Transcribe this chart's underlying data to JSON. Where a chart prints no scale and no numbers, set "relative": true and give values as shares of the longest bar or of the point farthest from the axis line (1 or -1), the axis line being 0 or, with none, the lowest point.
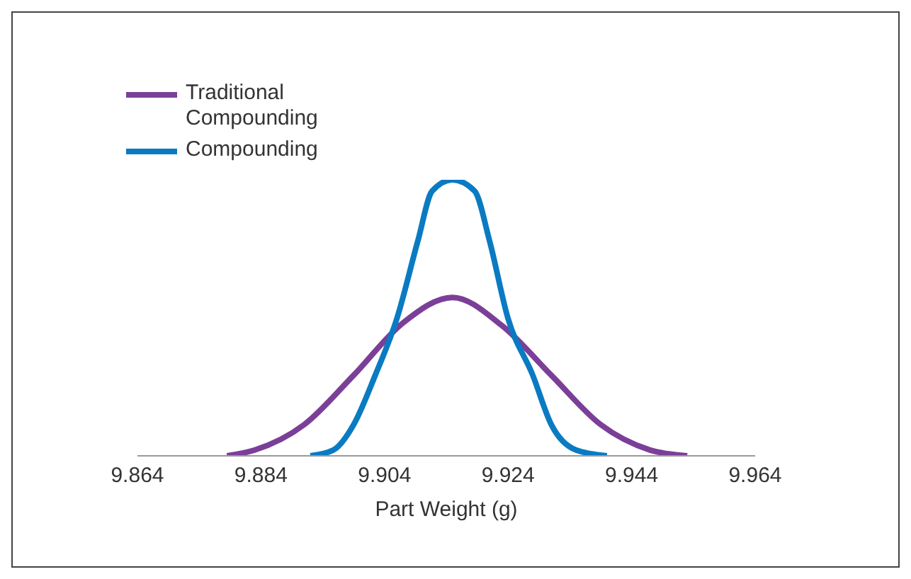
{
  "chart_data": {
    "type": "line",
    "xlabel": "Part Weight (g)",
    "relative": true,
    "xlim": [
      9.864,
      9.964
    ],
    "xticks": [
      {
        "value": 9.864,
        "label": "9.864"
      },
      {
        "value": 9.884,
        "label": "9.884"
      },
      {
        "value": 9.904,
        "label": "9.904"
      },
      {
        "value": 9.924,
        "label": "9.924"
      },
      {
        "value": 9.944,
        "label": "9.944"
      },
      {
        "value": 9.964,
        "label": "9.964"
      }
    ],
    "legend": "top left",
    "grid": false,
    "marker": "none",
    "series": [
      {
        "name": "Traditional Compounding",
        "color": "#7b3f98",
        "x": [
          9.8785,
          9.883,
          9.891,
          9.899,
          9.907,
          9.915,
          9.923,
          9.931,
          9.939,
          9.947,
          9.953
        ],
        "values": [
          0,
          0.021,
          0.113,
          0.292,
          0.482,
          0.574,
          0.472,
          0.292,
          0.113,
          0.021,
          0
        ]
      },
      {
        "name": "Compounding",
        "color": "#0a7bc2",
        "x": [
          9.892,
          9.8957,
          9.899,
          9.9025,
          9.906,
          9.9094,
          9.9117,
          9.915,
          9.9186,
          9.921,
          9.924,
          9.928,
          9.931,
          9.935,
          9.94
        ],
        "values": [
          0,
          0.021,
          0.113,
          0.292,
          0.497,
          0.779,
          0.959,
          1,
          0.959,
          0.779,
          0.497,
          0.292,
          0.113,
          0.021,
          0
        ]
      }
    ]
  }
}
